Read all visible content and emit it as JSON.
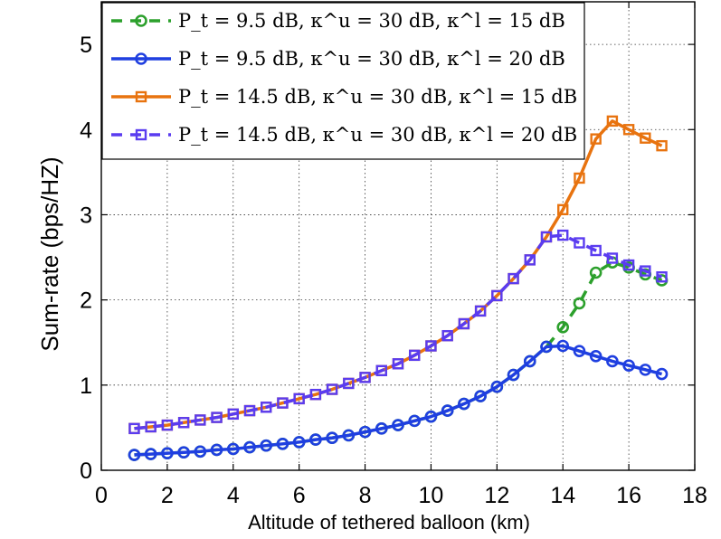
{
  "chart_data": {
    "type": "line",
    "title": "",
    "xlabel": "Altitude of tethered balloon (km)",
    "ylabel": "Sum-rate (bps/HZ)",
    "xlim": [
      0,
      18
    ],
    "ylim": [
      0,
      5.5
    ],
    "xticks": [
      "0",
      "2",
      "4",
      "6",
      "8",
      "10",
      "12",
      "14",
      "16",
      "18"
    ],
    "yticks": [
      "0",
      "1",
      "2",
      "3",
      "4",
      "5"
    ],
    "grid": true,
    "legend_position": "top-left",
    "series": [
      {
        "name": "P_t = 9.5 dB, κ^u = 30 dB, κ^l = 15 dB",
        "legend_label": "P_t = 9.5 dB, κ^u = 30 dB, κ^l = 15 dB",
        "color": "#2ca02c",
        "line_style": "dashed",
        "marker": "circle",
        "x": [
          1,
          1.5,
          2,
          2.5,
          3,
          3.5,
          4,
          4.5,
          5,
          5.5,
          6,
          6.5,
          7,
          7.5,
          8,
          8.5,
          9,
          9.5,
          10,
          10.5,
          11,
          11.5,
          12,
          12.5,
          13,
          13.5,
          14,
          14.5,
          15,
          15.5,
          16,
          16.5,
          17
        ],
        "values": [
          0.18,
          0.19,
          0.2,
          0.21,
          0.22,
          0.24,
          0.25,
          0.27,
          0.29,
          0.31,
          0.33,
          0.36,
          0.38,
          0.41,
          0.45,
          0.49,
          0.53,
          0.58,
          0.63,
          0.7,
          0.78,
          0.87,
          0.98,
          1.12,
          1.28,
          1.45,
          1.68,
          1.96,
          2.32,
          2.44,
          2.38,
          2.3,
          2.23
        ]
      },
      {
        "name": "P_t = 9.5 dB, κ^u = 30 dB, κ^l = 20 dB",
        "legend_label": "P_t = 9.5 dB, κ^u = 30 dB, κ^l = 20 dB",
        "color": "#1f3fe0",
        "line_style": "solid",
        "marker": "circle",
        "x": [
          1,
          1.5,
          2,
          2.5,
          3,
          3.5,
          4,
          4.5,
          5,
          5.5,
          6,
          6.5,
          7,
          7.5,
          8,
          8.5,
          9,
          9.5,
          10,
          10.5,
          11,
          11.5,
          12,
          12.5,
          13,
          13.5,
          14,
          14.5,
          15,
          15.5,
          16,
          16.5,
          17
        ],
        "values": [
          0.18,
          0.19,
          0.2,
          0.21,
          0.22,
          0.24,
          0.25,
          0.27,
          0.29,
          0.31,
          0.33,
          0.36,
          0.38,
          0.41,
          0.45,
          0.49,
          0.53,
          0.58,
          0.63,
          0.7,
          0.78,
          0.87,
          0.98,
          1.12,
          1.28,
          1.45,
          1.46,
          1.4,
          1.34,
          1.28,
          1.23,
          1.18,
          1.13
        ]
      },
      {
        "name": "P_t = 14.5 dB, κ^u = 30 dB, κ^l = 15 dB",
        "legend_label": "P_t = 14.5 dB, κ^u = 30 dB, κ^l = 15 dB",
        "color": "#e8730f",
        "line_style": "solid",
        "marker": "square",
        "x": [
          1,
          1.5,
          2,
          2.5,
          3,
          3.5,
          4,
          4.5,
          5,
          5.5,
          6,
          6.5,
          7,
          7.5,
          8,
          8.5,
          9,
          9.5,
          10,
          10.5,
          11,
          11.5,
          12,
          12.5,
          13,
          13.5,
          14,
          14.5,
          15,
          15.5,
          16,
          16.5,
          17
        ],
        "values": [
          0.49,
          0.51,
          0.53,
          0.56,
          0.59,
          0.62,
          0.66,
          0.7,
          0.74,
          0.79,
          0.84,
          0.89,
          0.95,
          1.02,
          1.09,
          1.17,
          1.25,
          1.35,
          1.46,
          1.58,
          1.72,
          1.87,
          2.05,
          2.25,
          2.47,
          2.74,
          3.06,
          3.43,
          3.89,
          4.1,
          4.0,
          3.9,
          3.81
        ]
      },
      {
        "name": "P_t = 14.5 dB, κ^u = 30 dB, κ^l = 20 dB",
        "legend_label": "P_t = 14.5 dB, κ^u = 30 dB, κ^l = 20 dB",
        "color": "#5a3cf0",
        "line_style": "dashed",
        "marker": "square",
        "x": [
          1,
          1.5,
          2,
          2.5,
          3,
          3.5,
          4,
          4.5,
          5,
          5.5,
          6,
          6.5,
          7,
          7.5,
          8,
          8.5,
          9,
          9.5,
          10,
          10.5,
          11,
          11.5,
          12,
          12.5,
          13,
          13.5,
          14,
          14.5,
          15,
          15.5,
          16,
          16.5,
          17
        ],
        "values": [
          0.49,
          0.51,
          0.53,
          0.56,
          0.59,
          0.62,
          0.66,
          0.7,
          0.74,
          0.79,
          0.84,
          0.89,
          0.95,
          1.02,
          1.09,
          1.17,
          1.25,
          1.35,
          1.46,
          1.58,
          1.72,
          1.87,
          2.05,
          2.25,
          2.47,
          2.74,
          2.76,
          2.67,
          2.58,
          2.49,
          2.41,
          2.34,
          2.27
        ]
      }
    ]
  }
}
